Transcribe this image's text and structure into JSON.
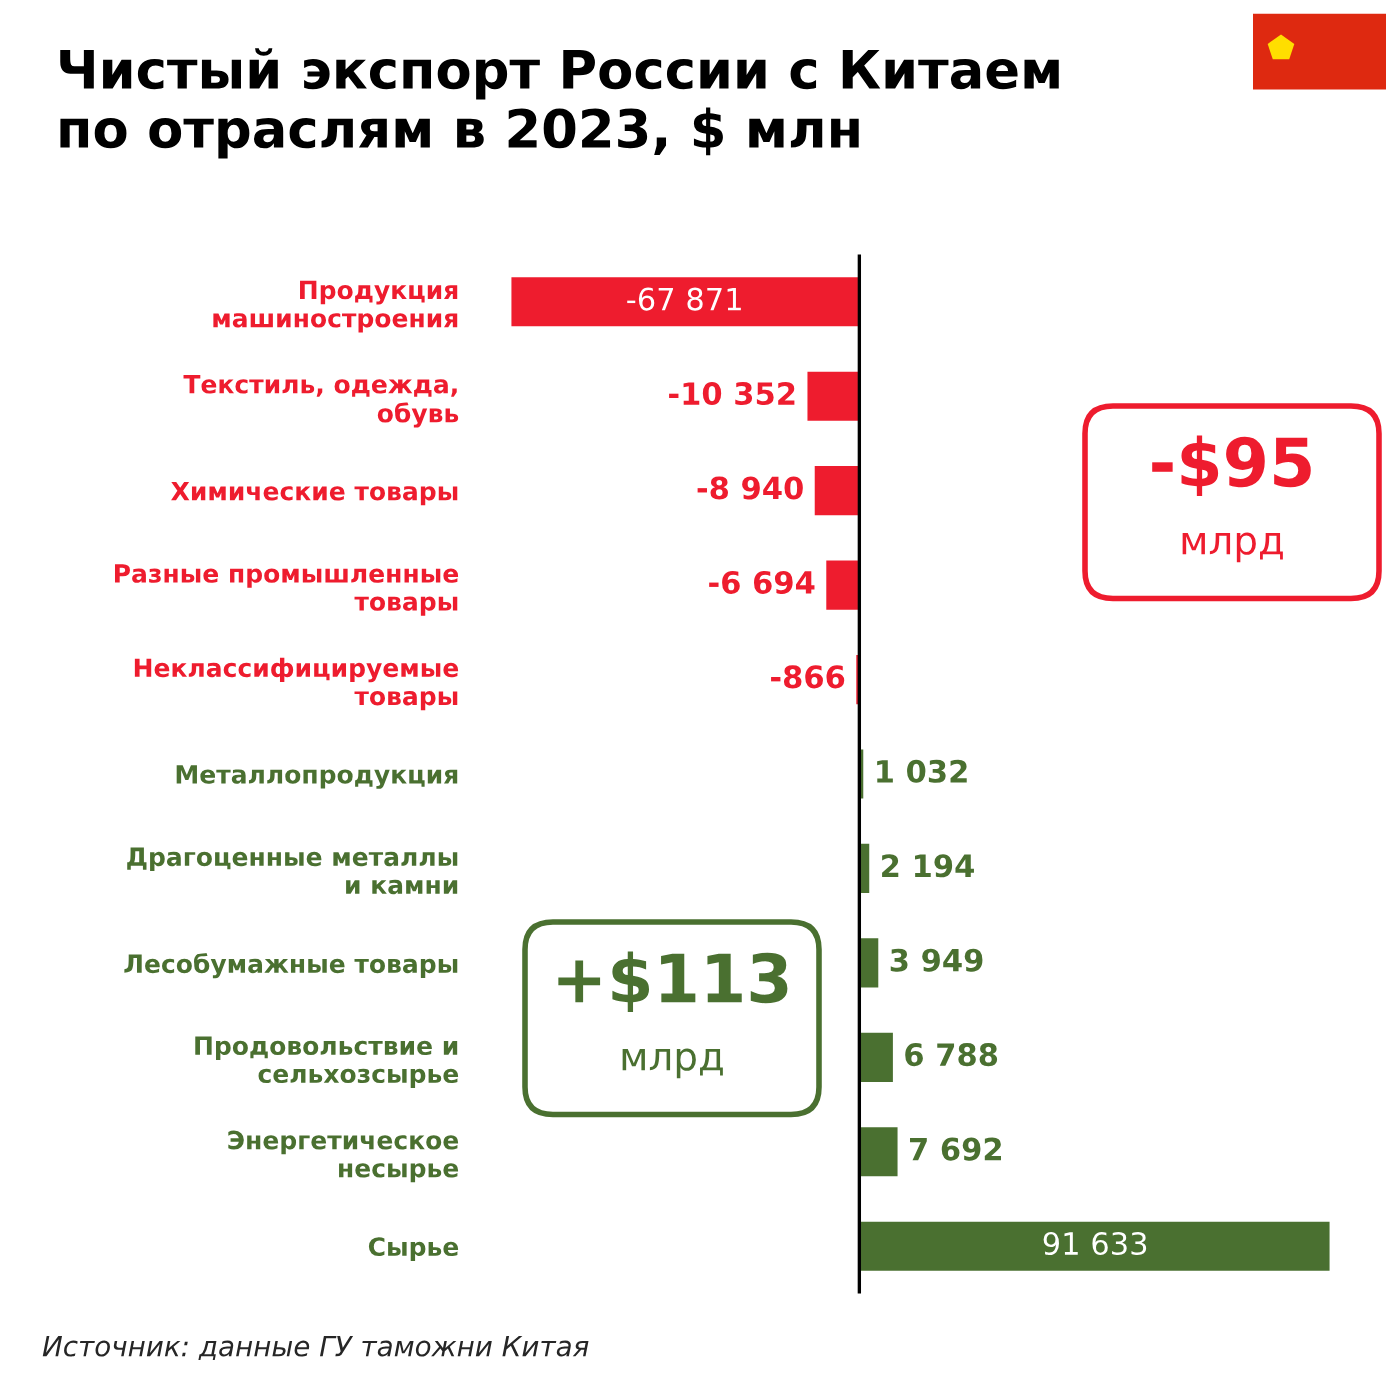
{
  "chart_data": {
    "type": "bar",
    "orientation": "horizontal",
    "title": "Чистый экспорт России с Китаем\nпо отраслям в 2023, $ млн",
    "categories": [
      "Продукция\nмашиностроения",
      "Текстиль, одежда,\nобувь",
      "Химические товары",
      "Разные промышленные\nтовары",
      "Неклассифицируемые\nтовары",
      "Металлопродукция",
      "Драгоценные металлы\nи камни",
      "Лесобумажные товары",
      "Продовольствие и\nсельхозсырье",
      "Энергетическое\nнесырье",
      "Сырье"
    ],
    "values": [
      -67871,
      -10352,
      -8940,
      -6694,
      -866,
      1032,
      2194,
      3949,
      6788,
      7692,
      91633
    ],
    "value_labels": [
      "-67 871",
      "-10 352",
      "-8 940",
      "-6 694",
      "-866",
      "1 032",
      "2 194",
      "3 949",
      "6 788",
      "7 692",
      "91 633"
    ],
    "colors": [
      "#ee1c2e",
      "#ee1c2e",
      "#ee1c2e",
      "#ee1c2e",
      "#ee1c2e",
      "#4a7030",
      "#4a7030",
      "#4a7030",
      "#4a7030",
      "#4a7030",
      "#4a7030"
    ],
    "tick_labels": "y",
    "ref_lines": [
      {
        "axis": "x",
        "value": 0,
        "label": null,
        "color": "#000000"
      }
    ],
    "annotations": [
      "Источник: данные ГУ таможни Китая",
      "-$95\nмлрд",
      "+$113\nмлрд"
    ]
  }
}
